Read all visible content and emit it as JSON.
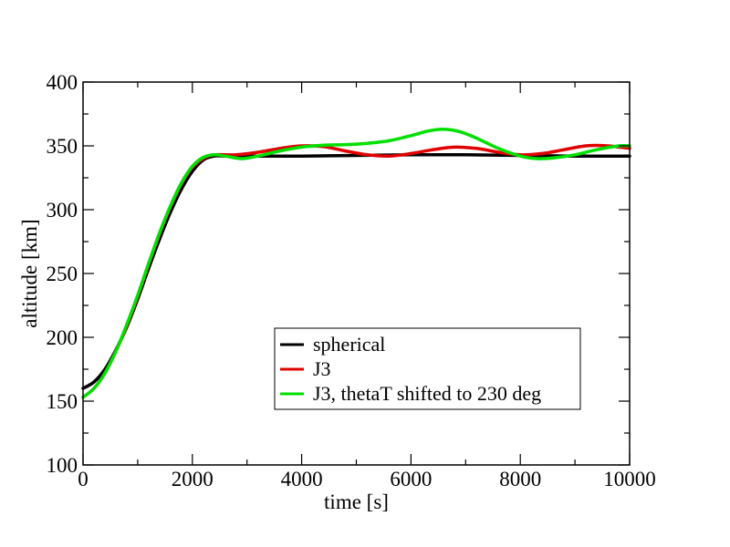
{
  "chart_data": {
    "type": "line",
    "title": "",
    "xlabel": "time [s]",
    "ylabel": "altitude [km]",
    "xlim": [
      0,
      10000
    ],
    "ylim": [
      100,
      400
    ],
    "xticks": [
      0,
      2000,
      4000,
      6000,
      8000,
      10000
    ],
    "xtick_labels": [
      "0",
      "2000",
      "4000",
      "6000",
      "8000",
      "10000"
    ],
    "xminor": [
      1000,
      3000,
      5000,
      7000,
      9000
    ],
    "yticks": [
      100,
      150,
      200,
      250,
      300,
      350,
      400
    ],
    "ytick_labels": [
      "100",
      "150",
      "200",
      "250",
      "300",
      "350",
      "400"
    ],
    "yminor": [
      125,
      175,
      225,
      275,
      325,
      375
    ],
    "grid": false,
    "legend_position": "center-right",
    "series": [
      {
        "name": "spherical",
        "color": "#000000",
        "x": [
          0,
          200,
          400,
          600,
          800,
          1000,
          1200,
          1400,
          1600,
          1800,
          2000,
          2200,
          2400,
          2600,
          3000,
          4000,
          5000,
          6000,
          7000,
          8000,
          9000,
          10000
        ],
        "y": [
          160,
          165,
          175,
          190,
          208,
          230,
          254,
          277,
          298,
          316,
          330,
          339,
          342,
          342,
          342,
          342,
          342.5,
          343,
          343,
          342.5,
          342,
          342
        ]
      },
      {
        "name": "J3",
        "color": "#e00000",
        "x": [
          0,
          200,
          400,
          600,
          800,
          1000,
          1200,
          1400,
          1600,
          1800,
          2000,
          2200,
          2400,
          2800,
          3200,
          3600,
          4000,
          4400,
          4800,
          5200,
          5600,
          6000,
          6400,
          6800,
          7200,
          7600,
          8000,
          8400,
          8800,
          9200,
          9600,
          10000
        ],
        "y": [
          153,
          160,
          172,
          189,
          209,
          232,
          257,
          281,
          302,
          320,
          333,
          340,
          343,
          343,
          345,
          348,
          350,
          349.5,
          346,
          343,
          342,
          344,
          347,
          349,
          348,
          345,
          343,
          344,
          347,
          350,
          350,
          348
        ]
      },
      {
        "name": "J3, thetaT shifted to 230 deg",
        "color": "#00e000",
        "x": [
          0,
          200,
          400,
          600,
          800,
          1000,
          1200,
          1400,
          1600,
          1800,
          2000,
          2200,
          2400,
          2600,
          2900,
          3200,
          3600,
          4000,
          4400,
          4800,
          5200,
          5600,
          6000,
          6300,
          6600,
          6900,
          7200,
          7600,
          8000,
          8300,
          8600,
          9000,
          9400,
          9800,
          10000
        ],
        "y": [
          153,
          160,
          172,
          189,
          210,
          233,
          258,
          282,
          303,
          321,
          334,
          341,
          343,
          342,
          340,
          342,
          346,
          349,
          350.5,
          351,
          352,
          354,
          358,
          361.5,
          363,
          361,
          356,
          348,
          342,
          340,
          340.5,
          343,
          347,
          350,
          350
        ]
      }
    ]
  }
}
